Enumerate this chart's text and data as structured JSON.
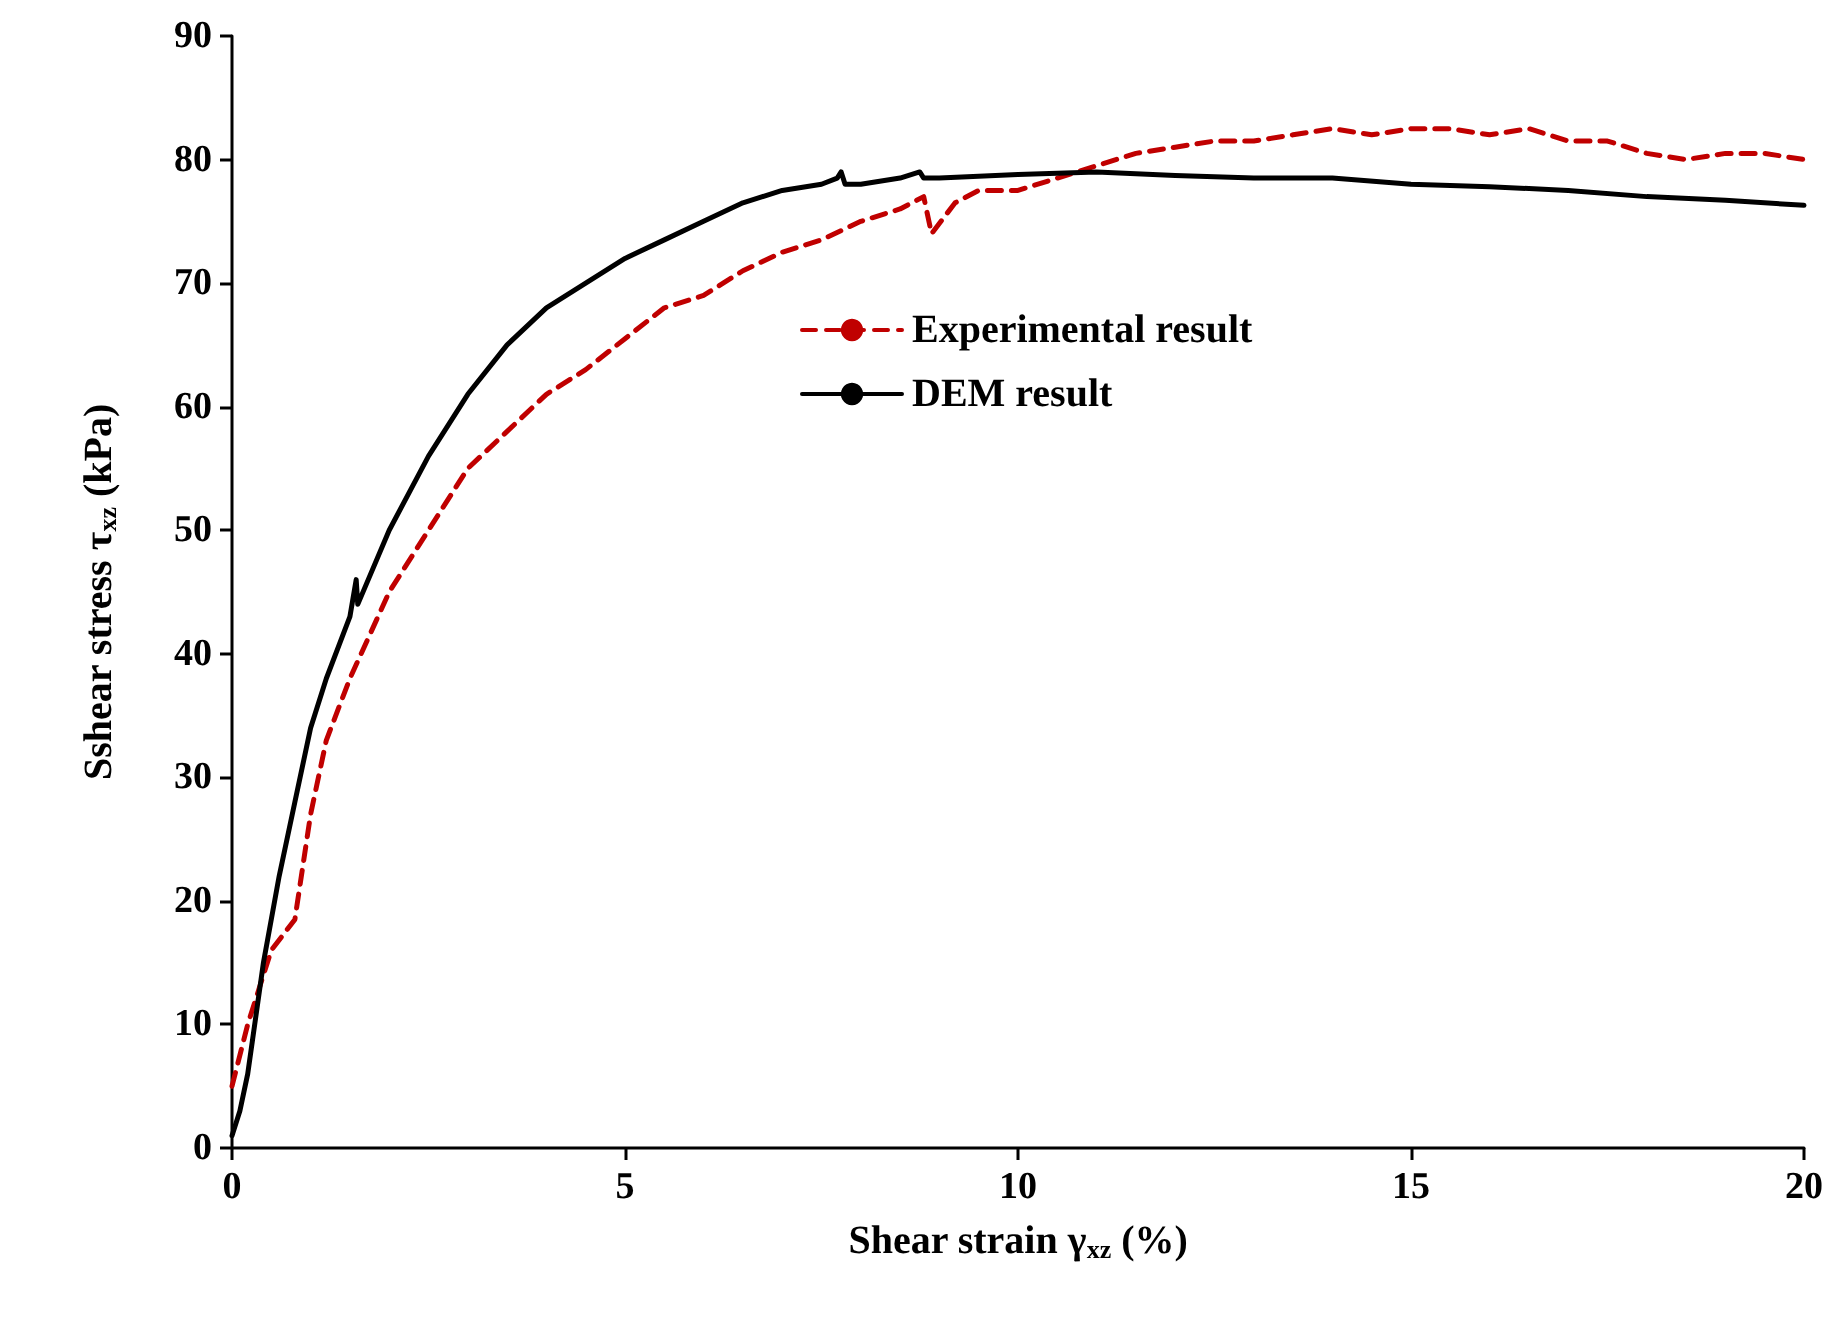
{
  "chart_data": {
    "type": "line",
    "xlabel": "Shear strain γ$_{xz}$ (%)",
    "ylabel": "Sshear stress τ$_{xz}$ (kPa)",
    "xlim": [
      0,
      20
    ],
    "xticks": [
      0,
      5,
      10,
      15,
      20
    ],
    "ylim": [
      0,
      90
    ],
    "yticks": [
      0,
      10,
      20,
      30,
      40,
      50,
      60,
      70,
      80,
      90
    ],
    "grid": false,
    "legend": "top center",
    "marker": "none",
    "series": [
      {
        "name": "Experimental result",
        "color": "#c00000",
        "line_style": "dashed",
        "x": [
          0,
          0.2,
          0.3,
          0.5,
          0.8,
          1.0,
          1.2,
          1.5,
          2,
          2.5,
          3,
          3.5,
          4,
          4.5,
          5,
          5.5,
          6,
          6.5,
          7,
          7.5,
          8,
          8.5,
          8.8,
          8.9,
          9.2,
          9.5,
          10,
          10.5,
          11,
          11.5,
          12,
          12.5,
          13,
          13.5,
          14,
          14.5,
          15,
          15.5,
          16,
          16.5,
          17,
          17.5,
          18,
          18.5,
          19,
          19.5,
          20
        ],
        "values": [
          5,
          10,
          12,
          16,
          18.5,
          27,
          33,
          38,
          45,
          50,
          55,
          58,
          61,
          63,
          65.5,
          68,
          69,
          71,
          72.5,
          73.5,
          75,
          76,
          77,
          74,
          76.5,
          77.5,
          77.5,
          78.5,
          79.5,
          80.5,
          81,
          81.5,
          81.5,
          82,
          82.5,
          82,
          82.5,
          82.5,
          82,
          82.5,
          81.5,
          81.5,
          80.5,
          80,
          80.5,
          80.5,
          80
        ]
      },
      {
        "name": "DEM result",
        "color": "#000000",
        "line_style": "solid",
        "x": [
          0,
          0.1,
          0.2,
          0.4,
          0.6,
          0.8,
          1,
          1.2,
          1.5,
          1.58,
          1.6,
          2,
          2.5,
          3,
          3.5,
          4,
          4.5,
          5,
          5.5,
          6,
          6.5,
          7,
          7.5,
          7.7,
          7.75,
          7.8,
          8,
          8.5,
          8.75,
          8.8,
          9,
          10,
          11,
          12,
          13,
          14,
          15,
          16,
          17,
          18,
          19,
          20
        ],
        "values": [
          1,
          3,
          6,
          15,
          22,
          28,
          34,
          38,
          43,
          46,
          44,
          50,
          56,
          61,
          65,
          68,
          70,
          72,
          73.5,
          75,
          76.5,
          77.5,
          78,
          78.5,
          79,
          78,
          78,
          78.5,
          79,
          78.5,
          78.5,
          78.8,
          79,
          78.7,
          78.5,
          78.5,
          78,
          77.8,
          77.5,
          77,
          76.7,
          76.3
        ]
      }
    ]
  }
}
